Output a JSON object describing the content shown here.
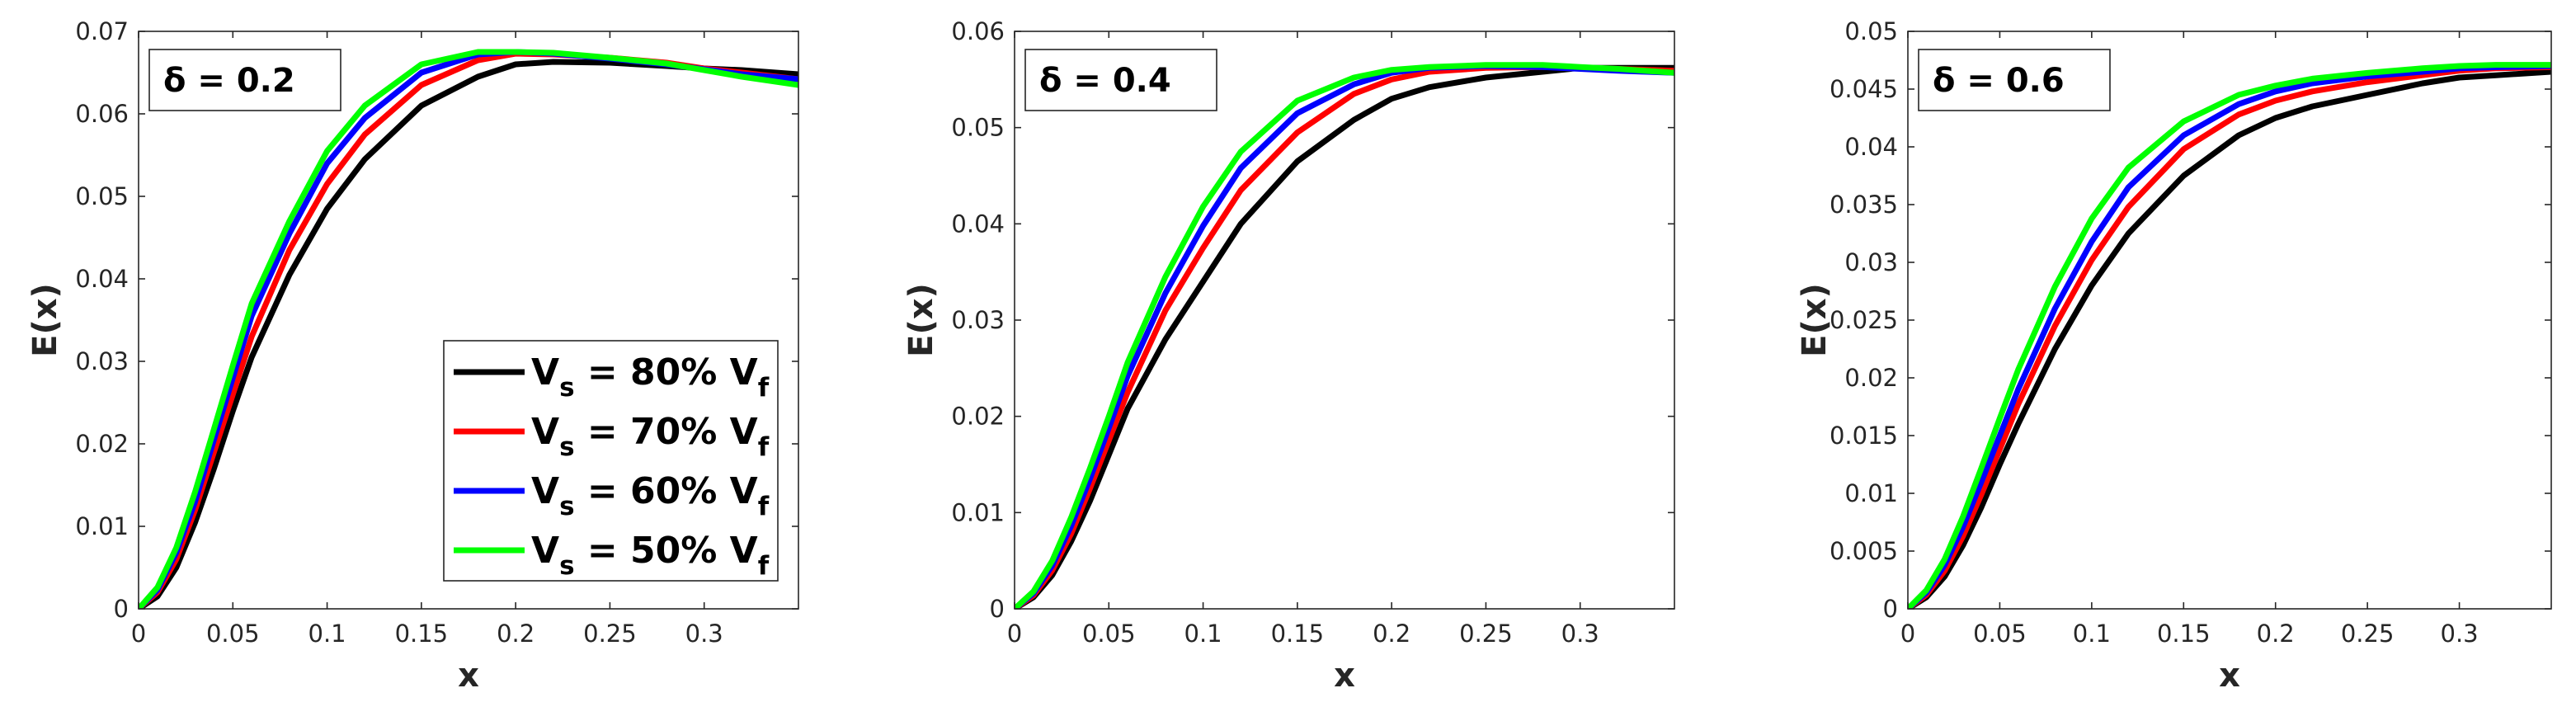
{
  "chart_data": [
    {
      "type": "line",
      "panel_label": "δ = 0.2",
      "xlabel": "x",
      "ylabel": "E(x)",
      "xlim": [
        0,
        0.35
      ],
      "ylim": [
        0,
        0.07
      ],
      "xticks": [
        0,
        0.05,
        0.1,
        0.15,
        0.2,
        0.25,
        0.3
      ],
      "xtick_labels": [
        "0",
        "0.05",
        "0.1",
        "0.15",
        "0.2",
        "0.25",
        "0.3"
      ],
      "yticks": [
        0,
        0.01,
        0.02,
        0.03,
        0.04,
        0.05,
        0.06,
        0.07
      ],
      "ytick_labels": [
        "0",
        "0.01",
        "0.02",
        "0.03",
        "0.04",
        "0.05",
        "0.06",
        "0.07"
      ],
      "legend": {
        "placement": "bottom-right",
        "entries": [
          {
            "main": "V",
            "sub1": "s",
            "mid": " = 80% V",
            "sub2": "f",
            "color": "#000000"
          },
          {
            "main": "V",
            "sub1": "s",
            "mid": " = 70% V",
            "sub2": "f",
            "color": "#ff0000"
          },
          {
            "main": "V",
            "sub1": "s",
            "mid": " = 60% V",
            "sub2": "f",
            "color": "#0000ff"
          },
          {
            "main": "V",
            "sub1": "s",
            "mid": " = 50% V",
            "sub2": "f",
            "color": "#00ff00"
          }
        ]
      },
      "series": [
        {
          "color": "#000000",
          "x": [
            0,
            0.01,
            0.02,
            0.03,
            0.04,
            0.05,
            0.06,
            0.08,
            0.1,
            0.12,
            0.15,
            0.18,
            0.2,
            0.22,
            0.25,
            0.28,
            0.3,
            0.32,
            0.35
          ],
          "y": [
            0,
            0.0015,
            0.005,
            0.0105,
            0.017,
            0.024,
            0.0305,
            0.0405,
            0.0485,
            0.0545,
            0.061,
            0.0645,
            0.066,
            0.0663,
            0.0662,
            0.0658,
            0.0655,
            0.0653,
            0.0648
          ]
        },
        {
          "color": "#ff0000",
          "x": [
            0,
            0.01,
            0.02,
            0.03,
            0.04,
            0.05,
            0.06,
            0.08,
            0.1,
            0.12,
            0.15,
            0.18,
            0.2,
            0.22,
            0.25,
            0.28,
            0.3,
            0.32,
            0.35
          ],
          "y": [
            0,
            0.002,
            0.006,
            0.012,
            0.019,
            0.026,
            0.033,
            0.0435,
            0.0515,
            0.0575,
            0.0635,
            0.0665,
            0.0673,
            0.0672,
            0.0668,
            0.0662,
            0.0655,
            0.065,
            0.0642
          ]
        },
        {
          "color": "#0000ff",
          "x": [
            0,
            0.01,
            0.02,
            0.03,
            0.04,
            0.05,
            0.06,
            0.08,
            0.1,
            0.12,
            0.15,
            0.18,
            0.2,
            0.22,
            0.25,
            0.28,
            0.3,
            0.32,
            0.35
          ],
          "y": [
            0,
            0.0023,
            0.0068,
            0.013,
            0.0205,
            0.028,
            0.0355,
            0.0455,
            0.054,
            0.0595,
            0.065,
            0.0672,
            0.0675,
            0.0673,
            0.0667,
            0.066,
            0.0654,
            0.0648,
            0.0642
          ]
        },
        {
          "color": "#00ff00",
          "x": [
            0,
            0.01,
            0.02,
            0.03,
            0.04,
            0.05,
            0.06,
            0.08,
            0.1,
            0.12,
            0.15,
            0.18,
            0.2,
            0.22,
            0.25,
            0.28,
            0.3,
            0.32,
            0.35
          ],
          "y": [
            0,
            0.0026,
            0.0074,
            0.0142,
            0.0218,
            0.0295,
            0.037,
            0.047,
            0.0555,
            0.061,
            0.066,
            0.0675,
            0.0675,
            0.0674,
            0.0668,
            0.0661,
            0.0653,
            0.0645,
            0.0635
          ]
        }
      ]
    },
    {
      "type": "line",
      "panel_label": "δ = 0.4",
      "xlabel": "x",
      "ylabel": "E(x)",
      "xlim": [
        0,
        0.35
      ],
      "ylim": [
        0,
        0.06
      ],
      "xticks": [
        0,
        0.05,
        0.1,
        0.15,
        0.2,
        0.25,
        0.3
      ],
      "xtick_labels": [
        "0",
        "0.05",
        "0.1",
        "0.15",
        "0.2",
        "0.25",
        "0.3"
      ],
      "yticks": [
        0,
        0.01,
        0.02,
        0.03,
        0.04,
        0.05,
        0.06
      ],
      "ytick_labels": [
        "0",
        "0.01",
        "0.02",
        "0.03",
        "0.04",
        "0.05",
        "0.06"
      ],
      "series": [
        {
          "color": "#000000",
          "x": [
            0,
            0.01,
            0.02,
            0.03,
            0.04,
            0.05,
            0.06,
            0.08,
            0.1,
            0.12,
            0.15,
            0.18,
            0.2,
            0.22,
            0.25,
            0.28,
            0.3,
            0.32,
            0.35
          ],
          "y": [
            0,
            0.0012,
            0.0035,
            0.007,
            0.0112,
            0.016,
            0.0208,
            0.028,
            0.034,
            0.04,
            0.0465,
            0.0508,
            0.053,
            0.0542,
            0.0552,
            0.0558,
            0.0562,
            0.0562,
            0.0562
          ]
        },
        {
          "color": "#ff0000",
          "x": [
            0,
            0.01,
            0.02,
            0.03,
            0.04,
            0.05,
            0.06,
            0.08,
            0.1,
            0.12,
            0.15,
            0.18,
            0.2,
            0.22,
            0.25,
            0.28,
            0.3,
            0.32,
            0.35
          ],
          "y": [
            0,
            0.0014,
            0.004,
            0.0078,
            0.0125,
            0.0175,
            0.0225,
            0.031,
            0.0375,
            0.0435,
            0.0495,
            0.0535,
            0.055,
            0.0558,
            0.0562,
            0.0563,
            0.0562,
            0.0561,
            0.0559
          ]
        },
        {
          "color": "#0000ff",
          "x": [
            0,
            0.01,
            0.02,
            0.03,
            0.04,
            0.05,
            0.06,
            0.08,
            0.1,
            0.12,
            0.15,
            0.18,
            0.2,
            0.22,
            0.25,
            0.28,
            0.3,
            0.32,
            0.35
          ],
          "y": [
            0,
            0.0016,
            0.0045,
            0.0086,
            0.0135,
            0.0188,
            0.0242,
            0.0328,
            0.0398,
            0.0458,
            0.0515,
            0.0545,
            0.0557,
            0.0562,
            0.0564,
            0.0563,
            0.0561,
            0.0559,
            0.0557
          ]
        },
        {
          "color": "#00ff00",
          "x": [
            0,
            0.01,
            0.02,
            0.03,
            0.04,
            0.05,
            0.06,
            0.08,
            0.1,
            0.12,
            0.15,
            0.18,
            0.2,
            0.22,
            0.25,
            0.28,
            0.3,
            0.32,
            0.35
          ],
          "y": [
            0,
            0.0018,
            0.005,
            0.0095,
            0.0146,
            0.02,
            0.0256,
            0.0345,
            0.0418,
            0.0475,
            0.0528,
            0.0552,
            0.056,
            0.0563,
            0.0565,
            0.0565,
            0.0563,
            0.0561,
            0.0557
          ]
        }
      ]
    },
    {
      "type": "line",
      "panel_label": "δ = 0.6",
      "xlabel": "x",
      "ylabel": "E(x)",
      "xlim": [
        0,
        0.35
      ],
      "ylim": [
        0,
        0.05
      ],
      "xticks": [
        0,
        0.05,
        0.1,
        0.15,
        0.2,
        0.25,
        0.3
      ],
      "xtick_labels": [
        "0",
        "0.05",
        "0.1",
        "0.15",
        "0.2",
        "0.25",
        "0.3"
      ],
      "yticks": [
        0,
        0.005,
        0.01,
        0.015,
        0.02,
        0.025,
        0.03,
        0.035,
        0.04,
        0.045,
        0.05
      ],
      "ytick_labels": [
        "0",
        "0.005",
        "0.01",
        "0.015",
        "0.02",
        "0.025",
        "0.03",
        "0.035",
        "0.04",
        "0.045",
        "0.05"
      ],
      "series": [
        {
          "color": "#000000",
          "x": [
            0,
            0.01,
            0.02,
            0.03,
            0.04,
            0.05,
            0.06,
            0.08,
            0.1,
            0.12,
            0.15,
            0.18,
            0.2,
            0.22,
            0.25,
            0.28,
            0.3,
            0.32,
            0.35
          ],
          "y": [
            0,
            0.001,
            0.0028,
            0.0055,
            0.0088,
            0.0125,
            0.016,
            0.0225,
            0.028,
            0.0325,
            0.0375,
            0.041,
            0.0425,
            0.0435,
            0.0445,
            0.0455,
            0.046,
            0.0462,
            0.0465
          ]
        },
        {
          "color": "#ff0000",
          "x": [
            0,
            0.01,
            0.02,
            0.03,
            0.04,
            0.05,
            0.06,
            0.08,
            0.1,
            0.12,
            0.15,
            0.18,
            0.2,
            0.22,
            0.25,
            0.28,
            0.3,
            0.32,
            0.35
          ],
          "y": [
            0,
            0.0012,
            0.0033,
            0.0063,
            0.0099,
            0.0138,
            0.0177,
            0.0245,
            0.0302,
            0.0348,
            0.0398,
            0.0428,
            0.044,
            0.0448,
            0.0456,
            0.0462,
            0.0466,
            0.0468,
            0.0469
          ]
        },
        {
          "color": "#0000ff",
          "x": [
            0,
            0.01,
            0.02,
            0.03,
            0.04,
            0.05,
            0.06,
            0.08,
            0.1,
            0.12,
            0.15,
            0.18,
            0.2,
            0.22,
            0.25,
            0.28,
            0.3,
            0.32,
            0.35
          ],
          "y": [
            0,
            0.0014,
            0.0038,
            0.0071,
            0.011,
            0.015,
            0.019,
            0.026,
            0.0318,
            0.0365,
            0.041,
            0.0437,
            0.0448,
            0.0455,
            0.0461,
            0.0465,
            0.0468,
            0.0469,
            0.047
          ]
        },
        {
          "color": "#00ff00",
          "x": [
            0,
            0.01,
            0.02,
            0.03,
            0.04,
            0.05,
            0.06,
            0.08,
            0.1,
            0.12,
            0.15,
            0.18,
            0.2,
            0.22,
            0.25,
            0.28,
            0.3,
            0.32,
            0.35
          ],
          "y": [
            0,
            0.0016,
            0.0043,
            0.008,
            0.0122,
            0.0165,
            0.0207,
            0.0279,
            0.0338,
            0.0382,
            0.0422,
            0.0445,
            0.0453,
            0.0459,
            0.0464,
            0.0468,
            0.047,
            0.0471,
            0.0471
          ]
        }
      ]
    }
  ]
}
